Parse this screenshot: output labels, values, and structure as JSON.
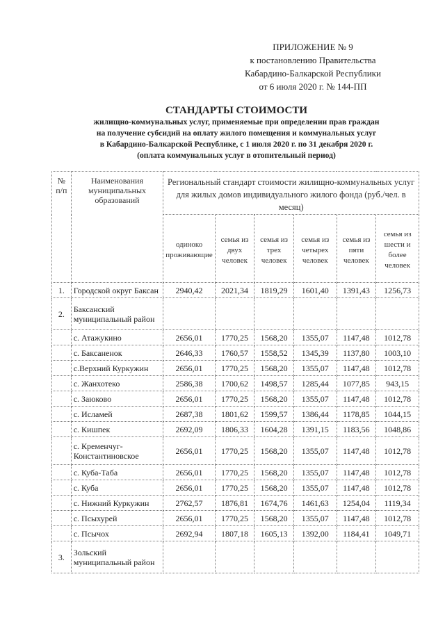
{
  "appendix": {
    "line1": "ПРИЛОЖЕНИЕ № 9",
    "line2": "к постановлению Правительства",
    "line3": "Кабардино-Балкарской Республики",
    "line4": "от 6 июля 2020 г. № 144-ПП"
  },
  "title": {
    "heading": "СТАНДАРТЫ СТОИМОСТИ",
    "sub1": "жилищно-коммунальных услуг, применяемые при определении прав граждан",
    "sub2": "на получение субсидий на оплату жилого помещения и коммунальных услуг",
    "sub3": "в Кабардино-Балкарской Республике, с 1 июля 2020 г. по 31 декабря 2020 г.",
    "sub4": "(оплата коммунальных услуг в отопительный период)"
  },
  "table": {
    "headers": {
      "num": "№ п/п",
      "name": "Наименования муниципальных образований",
      "group": "Региональный стандарт стоимости жилищно-коммунальных услуг для жилых домов индивидуального жилого фонда (руб./чел. в месяц)",
      "cols": [
        "одиноко проживающие",
        "семья из двух человек",
        "семья из трех человек",
        "семья из четырех человек",
        "семья из пяти человек",
        "семья из шести и более человек"
      ]
    },
    "rows": [
      {
        "num": "1.",
        "name": "Городской округ Баксан",
        "values": [
          "2940,42",
          "2021,34",
          "1819,29",
          "1601,40",
          "1391,43",
          "1256,73"
        ]
      },
      {
        "num": "2.",
        "name": "Баксанский муниципальный район",
        "values": [
          "",
          "",
          "",
          "",
          "",
          ""
        ]
      },
      {
        "num": "",
        "name": "с. Атажукино",
        "values": [
          "2656,01",
          "1770,25",
          "1568,20",
          "1355,07",
          "1147,48",
          "1012,78"
        ]
      },
      {
        "num": "",
        "name": "с. Баксаненок",
        "values": [
          "2646,33",
          "1760,57",
          "1558,52",
          "1345,39",
          "1137,80",
          "1003,10"
        ]
      },
      {
        "num": "",
        "name": "с.Верхний Куркужин",
        "values": [
          "2656,01",
          "1770,25",
          "1568,20",
          "1355,07",
          "1147,48",
          "1012,78"
        ]
      },
      {
        "num": "",
        "name": "с. Жанхотеко",
        "values": [
          "2586,38",
          "1700,62",
          "1498,57",
          "1285,44",
          "1077,85",
          "943,15"
        ]
      },
      {
        "num": "",
        "name": "с. Заюково",
        "values": [
          "2656,01",
          "1770,25",
          "1568,20",
          "1355,07",
          "1147,48",
          "1012,78"
        ]
      },
      {
        "num": "",
        "name": "с. Исламей",
        "values": [
          "2687,38",
          "1801,62",
          "1599,57",
          "1386,44",
          "1178,85",
          "1044,15"
        ]
      },
      {
        "num": "",
        "name": "с. Кишпек",
        "values": [
          "2692,09",
          "1806,33",
          "1604,28",
          "1391,15",
          "1183,56",
          "1048,86"
        ]
      },
      {
        "num": "",
        "name": "с. Кременчуг-Константиновское",
        "values": [
          "2656,01",
          "1770,25",
          "1568,20",
          "1355,07",
          "1147,48",
          "1012,78"
        ]
      },
      {
        "num": "",
        "name": "с. Куба-Таба",
        "values": [
          "2656,01",
          "1770,25",
          "1568,20",
          "1355,07",
          "1147,48",
          "1012,78"
        ]
      },
      {
        "num": "",
        "name": "с. Куба",
        "values": [
          "2656,01",
          "1770,25",
          "1568,20",
          "1355,07",
          "1147,48",
          "1012,78"
        ]
      },
      {
        "num": "",
        "name": "с. Нижний Куркужин",
        "values": [
          "2762,57",
          "1876,81",
          "1674,76",
          "1461,63",
          "1254,04",
          "1119,34"
        ]
      },
      {
        "num": "",
        "name": "с. Псыхурей",
        "values": [
          "2656,01",
          "1770,25",
          "1568,20",
          "1355,07",
          "1147,48",
          "1012,78"
        ]
      },
      {
        "num": "",
        "name": "с. Псычох",
        "values": [
          "2692,94",
          "1807,18",
          "1605,13",
          "1392,00",
          "1184,41",
          "1049,71"
        ]
      },
      {
        "num": "3.",
        "name": "Зольский муниципальный район",
        "values": [
          "",
          "",
          "",
          "",
          "",
          ""
        ]
      }
    ]
  }
}
